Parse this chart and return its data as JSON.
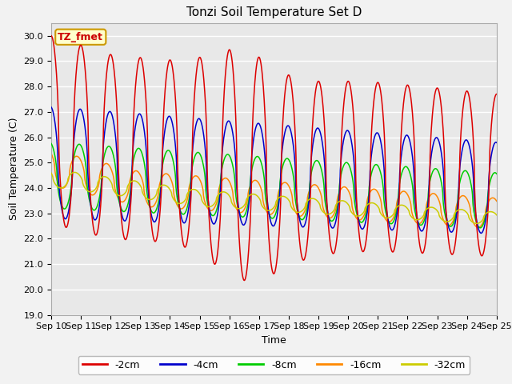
{
  "title": "Tonzi Soil Temperature Set D",
  "xlabel": "Time",
  "ylabel": "Soil Temperature (C)",
  "annotation": "TZ_fmet",
  "annotation_bbox": {
    "facecolor": "#ffffcc",
    "edgecolor": "#cc9900",
    "boxstyle": "round,pad=0.3"
  },
  "annotation_color": "#cc0000",
  "ylim": [
    19.0,
    30.5
  ],
  "yticks": [
    19.0,
    20.0,
    21.0,
    22.0,
    23.0,
    24.0,
    25.0,
    26.0,
    27.0,
    28.0,
    29.0,
    30.0
  ],
  "xlim_start": 0,
  "xlim_end": 15,
  "xtick_labels": [
    "Sep 10",
    "Sep 11",
    "Sep 12",
    "Sep 13",
    "Sep 14",
    "Sep 15",
    "Sep 16",
    "Sep 17",
    "Sep 18",
    "Sep 19",
    "Sep 20",
    "Sep 21",
    "Sep 22",
    "Sep 23",
    "Sep 24",
    "Sep 25"
  ],
  "series_colors": [
    "#dd0000",
    "#0000cc",
    "#00cc00",
    "#ff8800",
    "#cccc00"
  ],
  "series_labels": [
    "-2cm",
    "-4cm",
    "-8cm",
    "-16cm",
    "-32cm"
  ],
  "plot_bg_color": "#e8e8e8",
  "grid_color": "#ffffff",
  "fig_bg_color": "#f2f2f2"
}
